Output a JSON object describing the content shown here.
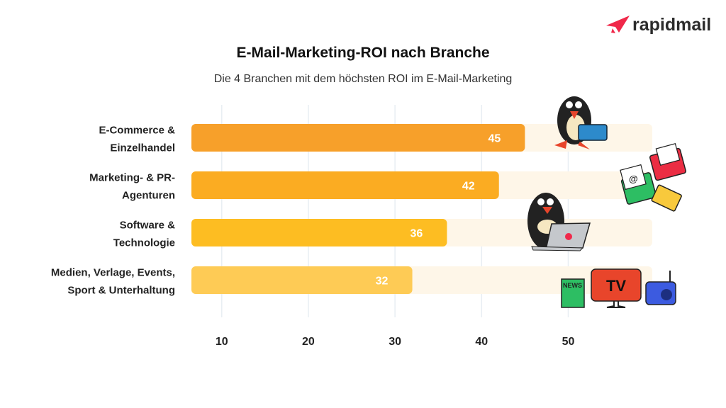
{
  "brand": {
    "name": "rapidmail",
    "logo_color": "#F0284A"
  },
  "chart_data": {
    "type": "bar",
    "orientation": "horizontal",
    "title": "E-Mail-Marketing-ROI nach Branche",
    "subtitle": "Die 4 Branchen mit dem höchsten ROI im E-Mail-Marketing",
    "categories": [
      [
        "E-Commerce &",
        "Einzelhandel"
      ],
      [
        "Marketing- & PR-",
        "Agenturen"
      ],
      [
        "Software &",
        "Technologie"
      ],
      [
        "Medien, Verlage, Events,",
        "Sport & Unterhaltung"
      ]
    ],
    "values": [
      45,
      42,
      36,
      32
    ],
    "value_labels": [
      "45",
      "42",
      "36",
      "32"
    ],
    "bar_colors": [
      "#F7A02A",
      "#FBAC22",
      "#FDBD22",
      "#FECB55"
    ],
    "track_color": "#FEF6E8",
    "xticks": [
      10,
      20,
      30,
      40,
      50
    ],
    "xtick_labels": [
      "10",
      "20",
      "30",
      "40",
      "50"
    ],
    "xlim": [
      6.5,
      59.7
    ],
    "grid": true,
    "xlabel": "",
    "ylabel": "",
    "illustrations": [
      "penguin-with-basket",
      "envelopes",
      "penguin-with-laptop",
      "news-tv-radio"
    ],
    "illustration_text": {
      "tv": "TV",
      "news": "NEWS",
      "at": "@"
    }
  }
}
